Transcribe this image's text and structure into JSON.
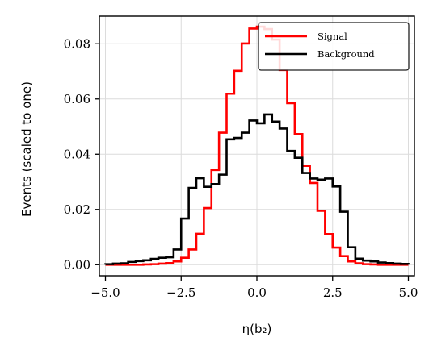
{
  "chart_data": {
    "type": "line",
    "xlabel": "η(b₂)",
    "ylabel": "Events (scaled to one)",
    "xlim": [
      -5.2,
      5.2
    ],
    "ylim": [
      -0.004,
      0.09
    ],
    "xticks": [
      -5.0,
      -2.5,
      0.0,
      2.5,
      5.0
    ],
    "xtick_labels": [
      "−5.0",
      "−2.5",
      "0.0",
      "2.5",
      "5.0"
    ],
    "yticks": [
      0.0,
      0.02,
      0.04,
      0.06,
      0.08
    ],
    "ytick_labels": [
      "0.00",
      "0.02",
      "0.04",
      "0.06",
      "0.08"
    ],
    "grid": true,
    "legend_position": "top-right",
    "bin_edges": [
      -5.0,
      -4.75,
      -4.5,
      -4.25,
      -4.0,
      -3.75,
      -3.5,
      -3.25,
      -3.0,
      -2.75,
      -2.5,
      -2.25,
      -2.0,
      -1.75,
      -1.5,
      -1.25,
      -1.0,
      -0.75,
      -0.5,
      -0.25,
      0.0,
      0.25,
      0.5,
      0.75,
      1.0,
      1.25,
      1.5,
      1.75,
      2.0,
      2.25,
      2.5,
      2.75,
      3.0,
      3.25,
      3.5,
      3.75,
      4.0,
      4.25,
      4.5,
      4.75,
      5.0
    ],
    "series": [
      {
        "name": "Signal",
        "color": "#ff0000",
        "values": [
          0.0,
          0.0,
          0.0,
          0.0,
          0.0,
          0.0001,
          0.0002,
          0.0004,
          0.0006,
          0.0012,
          0.0025,
          0.0055,
          0.0112,
          0.0205,
          0.0343,
          0.0478,
          0.0619,
          0.0702,
          0.0801,
          0.0855,
          0.0862,
          0.0853,
          0.0815,
          0.0705,
          0.0585,
          0.0473,
          0.0358,
          0.0296,
          0.0195,
          0.0111,
          0.0062,
          0.0031,
          0.0012,
          0.0005,
          0.0002,
          0.0001,
          0.0,
          0.0,
          0.0,
          0.0
        ]
      },
      {
        "name": "Background",
        "color": "#000000",
        "values": [
          0.0002,
          0.0004,
          0.0005,
          0.001,
          0.0013,
          0.0016,
          0.0021,
          0.0025,
          0.0027,
          0.0055,
          0.0167,
          0.0278,
          0.0313,
          0.0282,
          0.0292,
          0.0326,
          0.0454,
          0.0459,
          0.0478,
          0.0522,
          0.0512,
          0.0544,
          0.0518,
          0.0493,
          0.0412,
          0.0387,
          0.0332,
          0.0312,
          0.0308,
          0.0312,
          0.0283,
          0.0192,
          0.0063,
          0.0022,
          0.0015,
          0.0012,
          0.0008,
          0.0006,
          0.0004,
          0.0003
        ]
      }
    ]
  }
}
